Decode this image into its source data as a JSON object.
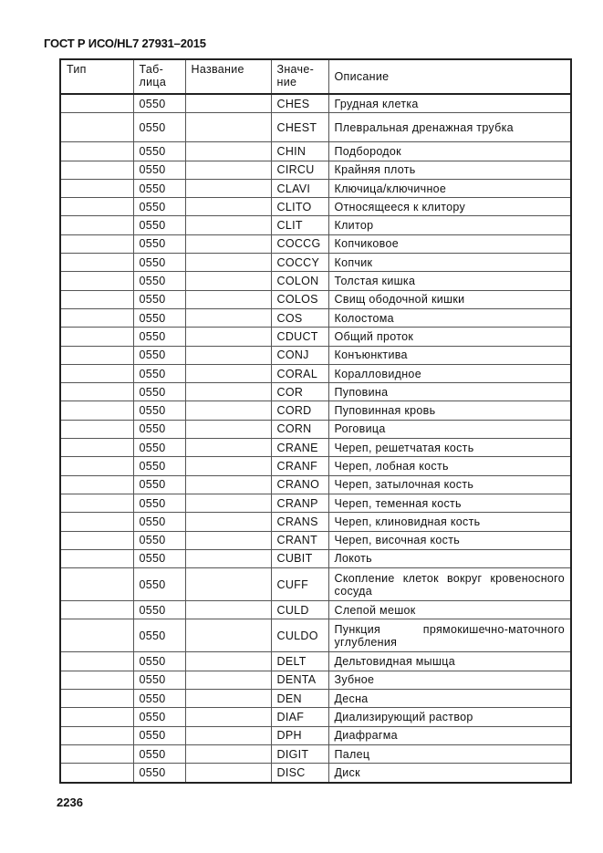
{
  "header": "ГОСТ Р ИСО/HL7 27931–2015",
  "page_number": "2236",
  "columns": [
    "Тип",
    "Таб-лица",
    "Название",
    "Значе-ние",
    "Описание"
  ],
  "rows": [
    {
      "table": "0550",
      "value": "CHES",
      "desc": "Грудная клетка"
    },
    {
      "table": "0550",
      "value": "CHEST",
      "desc": "Плевральная дренажная трубка"
    },
    {
      "table": "0550",
      "value": "CHIN",
      "desc": "Подбородок"
    },
    {
      "table": "0550",
      "value": "CIRCU",
      "desc": "Крайняя плоть"
    },
    {
      "table": "0550",
      "value": "CLAVI",
      "desc": "Ключица/ключичное"
    },
    {
      "table": "0550",
      "value": "CLITO",
      "desc": "Относящееся к клитору"
    },
    {
      "table": "0550",
      "value": "CLIT",
      "desc": "Клитор"
    },
    {
      "table": "0550",
      "value": "COCCG",
      "desc": "Копчиковое"
    },
    {
      "table": "0550",
      "value": "COCCY",
      "desc": "Копчик"
    },
    {
      "table": "0550",
      "value": "COLON",
      "desc": "Толстая кишка"
    },
    {
      "table": "0550",
      "value": "COLOS",
      "desc": "Свищ ободочной кишки"
    },
    {
      "table": "0550",
      "value": "COS",
      "desc": "Колостома"
    },
    {
      "table": "0550",
      "value": "CDUCT",
      "desc": "Общий проток"
    },
    {
      "table": "0550",
      "value": "CONJ",
      "desc": "Конъюнктива"
    },
    {
      "table": "0550",
      "value": "CORAL",
      "desc": "Коралловидное"
    },
    {
      "table": "0550",
      "value": "COR",
      "desc": "Пуповина"
    },
    {
      "table": "0550",
      "value": "CORD",
      "desc": "Пуповинная кровь"
    },
    {
      "table": "0550",
      "value": "CORN",
      "desc": "Роговица"
    },
    {
      "table": "0550",
      "value": "CRANE",
      "desc": "Череп, решетчатая кость"
    },
    {
      "table": "0550",
      "value": "CRANF",
      "desc": "Череп, лобная кость"
    },
    {
      "table": "0550",
      "value": "CRANO",
      "desc": "Череп, затылочная кость"
    },
    {
      "table": "0550",
      "value": "CRANP",
      "desc": "Череп, теменная кость"
    },
    {
      "table": "0550",
      "value": "CRANS",
      "desc": "Череп, клиновидная кость"
    },
    {
      "table": "0550",
      "value": "CRANT",
      "desc": "Череп, височная кость"
    },
    {
      "table": "0550",
      "value": "CUBIT",
      "desc": "Локоть"
    },
    {
      "table": "0550",
      "value": "CUFF",
      "desc": "Скопление клеток вокруг кровеносного сосуда"
    },
    {
      "table": "0550",
      "value": "CULD",
      "desc": "Слепой мешок"
    },
    {
      "table": "0550",
      "value": "CULDO",
      "desc": "Пункция прямокишечно-маточного углубления"
    },
    {
      "table": "0550",
      "value": "DELT",
      "desc": "Дельтовидная мышца"
    },
    {
      "table": "0550",
      "value": "DENTA",
      "desc": "Зубное"
    },
    {
      "table": "0550",
      "value": "DEN",
      "desc": "Десна"
    },
    {
      "table": "0550",
      "value": "DIAF",
      "desc": "Диализирующий раствор"
    },
    {
      "table": "0550",
      "value": "DPH",
      "desc": "Диафрагма"
    },
    {
      "table": "0550",
      "value": "DIGIT",
      "desc": "Палец"
    },
    {
      "table": "0550",
      "value": "DISC",
      "desc": "Диск"
    }
  ]
}
